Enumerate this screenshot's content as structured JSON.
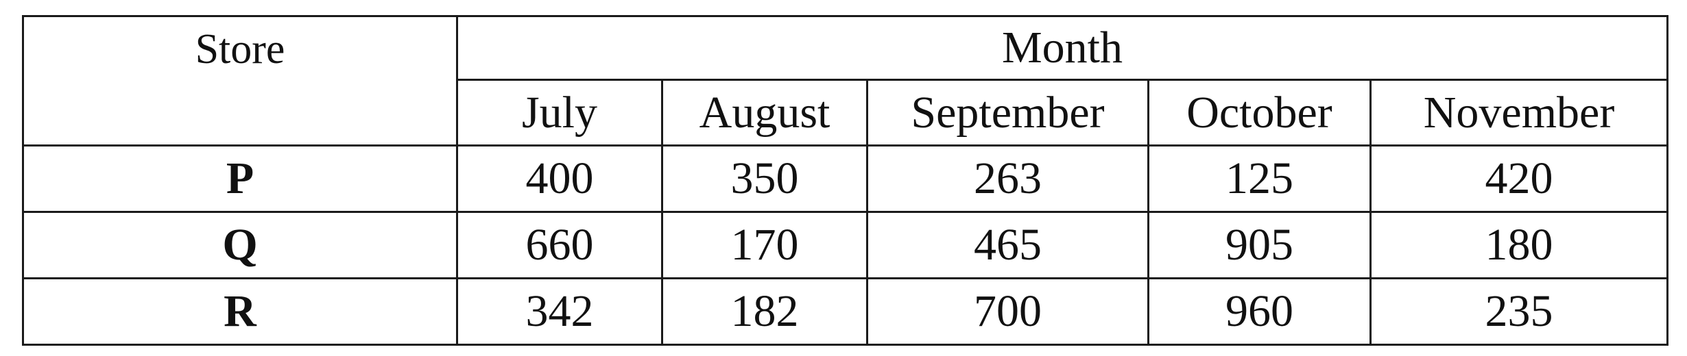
{
  "table": {
    "store_header": "Store",
    "month_header": "Month",
    "months": [
      "July",
      "August",
      "September",
      "October",
      "November"
    ],
    "rows": [
      {
        "store": "P",
        "values": [
          "400",
          "350",
          "263",
          "125",
          "420"
        ]
      },
      {
        "store": "Q",
        "values": [
          "660",
          "170",
          "465",
          "905",
          "180"
        ]
      },
      {
        "store": "R",
        "values": [
          "342",
          "182",
          "700",
          "960",
          "235"
        ]
      }
    ]
  }
}
